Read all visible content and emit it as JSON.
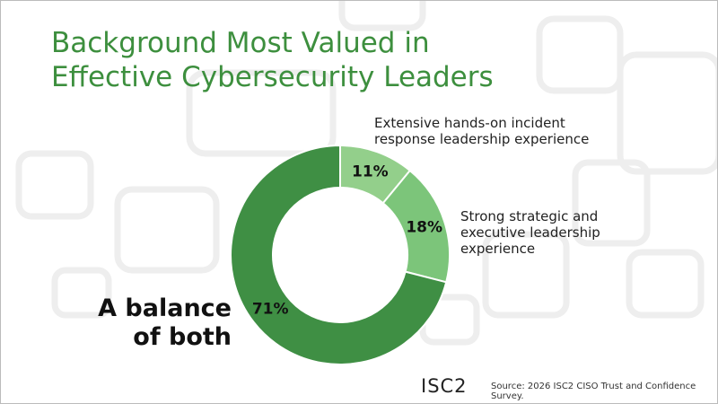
{
  "chart_data": {
    "type": "donut",
    "title": "Background Most Valued in Effective Cybersecurity Leaders",
    "categories": [
      "Extensive hands-on incident response leadership experience",
      "Strong strategic and executive leadership experience",
      "A balance of both"
    ],
    "values": [
      11,
      18,
      71
    ],
    "value_labels": [
      "11%",
      "18%",
      "71%"
    ],
    "colors": [
      "#93cf8b",
      "#7cc57a",
      "#3f8f44"
    ]
  },
  "footer": {
    "logo": "ISC2",
    "source": "Source: 2026 ISC2 CISO Trust and Confidence Survey."
  }
}
